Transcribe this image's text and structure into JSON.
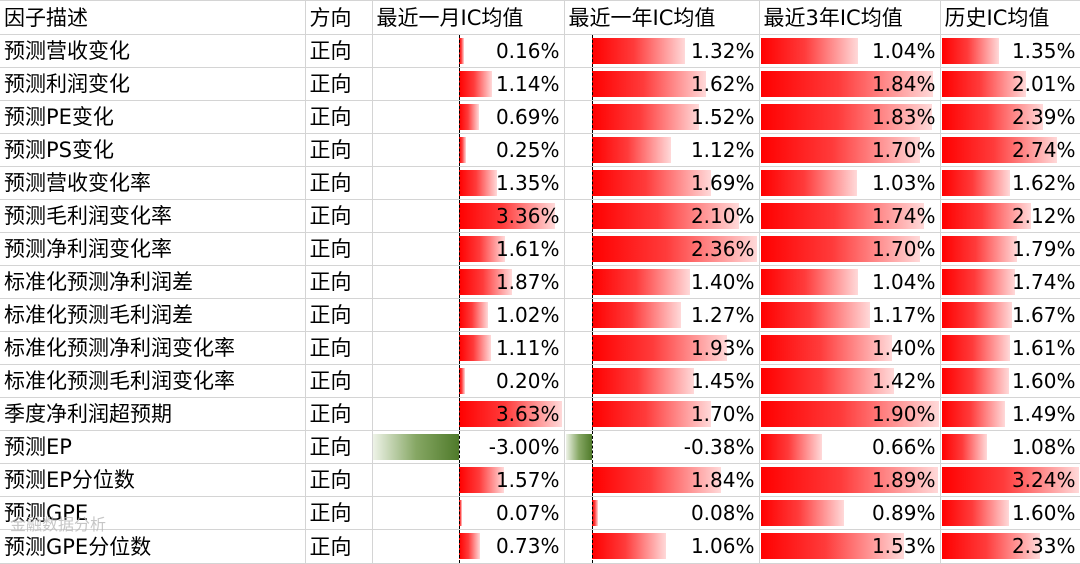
{
  "headers": [
    "因子描述",
    "方向",
    "最近一月IC均值",
    "最近一年IC均值",
    "最近3年IC均值",
    "历史IC均值"
  ],
  "rows": [
    {
      "name": "预测营收变化",
      "dir": "正向",
      "m1": "0.16%",
      "y1": "1.32%",
      "y3": "1.04%",
      "hist": "1.35%"
    },
    {
      "name": "预测利润变化",
      "dir": "正向",
      "m1": "1.14%",
      "y1": "1.62%",
      "y3": "1.84%",
      "hist": "2.01%"
    },
    {
      "name": "预测PE变化",
      "dir": "正向",
      "m1": "0.69%",
      "y1": "1.52%",
      "y3": "1.83%",
      "hist": "2.39%"
    },
    {
      "name": "预测PS变化",
      "dir": "正向",
      "m1": "0.25%",
      "y1": "1.12%",
      "y3": "1.70%",
      "hist": "2.74%"
    },
    {
      "name": "预测营收变化率",
      "dir": "正向",
      "m1": "1.35%",
      "y1": "1.69%",
      "y3": "1.03%",
      "hist": "1.62%"
    },
    {
      "name": "预测毛利润变化率",
      "dir": "正向",
      "m1": "3.36%",
      "y1": "2.10%",
      "y3": "1.74%",
      "hist": "2.12%"
    },
    {
      "name": "预测净利润变化率",
      "dir": "正向",
      "m1": "1.61%",
      "y1": "2.36%",
      "y3": "1.70%",
      "hist": "1.79%"
    },
    {
      "name": "标准化预测净利润差",
      "dir": "正向",
      "m1": "1.87%",
      "y1": "1.40%",
      "y3": "1.04%",
      "hist": "1.74%"
    },
    {
      "name": "标准化预测毛利润差",
      "dir": "正向",
      "m1": "1.02%",
      "y1": "1.27%",
      "y3": "1.17%",
      "hist": "1.67%"
    },
    {
      "name": "标准化预测净利润变化率",
      "dir": "正向",
      "m1": "1.11%",
      "y1": "1.93%",
      "y3": "1.40%",
      "hist": "1.61%"
    },
    {
      "name": "标准化预测毛利润变化率",
      "dir": "正向",
      "m1": "0.20%",
      "y1": "1.45%",
      "y3": "1.42%",
      "hist": "1.60%"
    },
    {
      "name": "季度净利润超预期",
      "dir": "正向",
      "m1": "3.63%",
      "y1": "1.70%",
      "y3": "1.90%",
      "hist": "1.49%"
    },
    {
      "name": "预测EP",
      "dir": "正向",
      "m1": "-3.00%",
      "y1": "-0.38%",
      "y3": "0.66%",
      "hist": "1.08%"
    },
    {
      "name": "预测EP分位数",
      "dir": "正向",
      "m1": "1.57%",
      "y1": "1.84%",
      "y3": "1.89%",
      "hist": "3.24%"
    },
    {
      "name": "预测GPE",
      "dir": "正向",
      "m1": "0.07%",
      "y1": "0.08%",
      "y3": "0.89%",
      "hist": "1.60%"
    },
    {
      "name": "预测GPE分位数",
      "dir": "正向",
      "m1": "0.73%",
      "y1": "1.06%",
      "y3": "1.53%",
      "hist": "2.33%"
    }
  ],
  "colors": {
    "positive_bar": "#ff0000",
    "negative_bar": "#4f7a2a",
    "grid": "#d4d4d4"
  },
  "watermark": "金融数据分析"
}
